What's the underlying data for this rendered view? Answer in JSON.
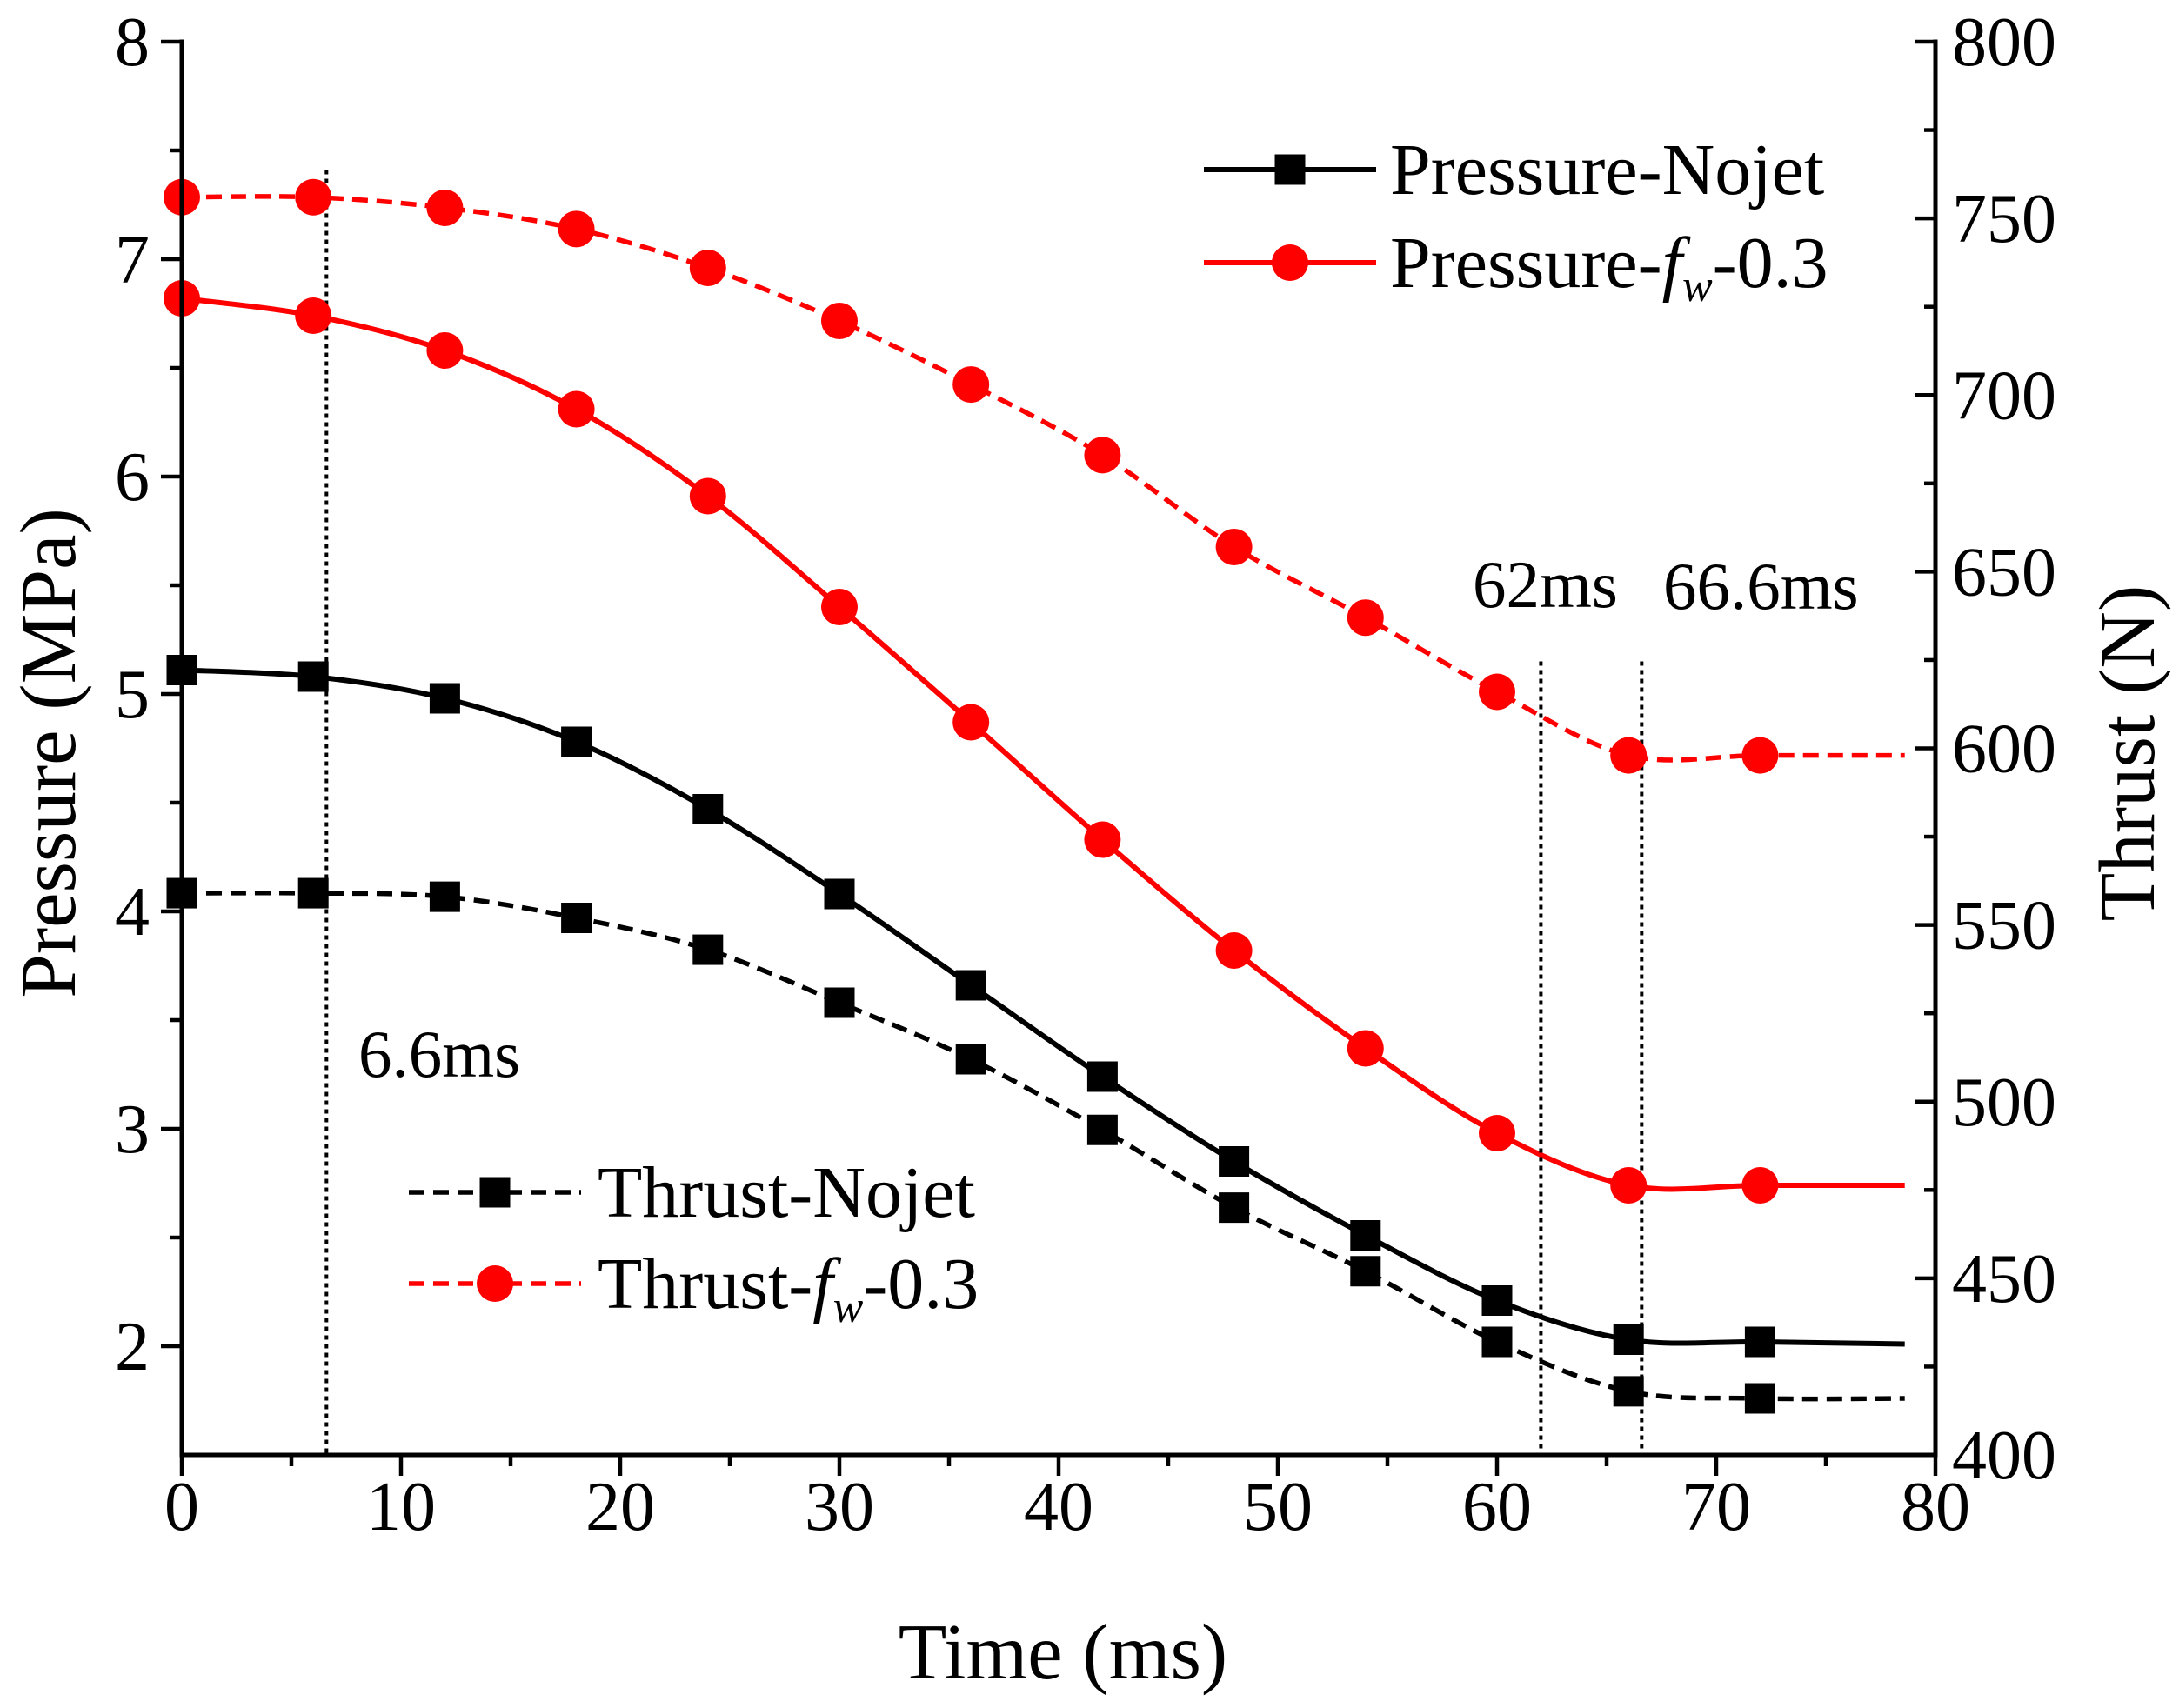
{
  "chart_data": {
    "type": "line",
    "title": "",
    "xlabel": "Time (ms)",
    "ylabel": "Pressure (MPa)",
    "y2label": "Thrust (N)",
    "xlim": [
      0,
      80
    ],
    "ylim": [
      1.5,
      8
    ],
    "y2lim": [
      400,
      800
    ],
    "xticks": [
      0,
      10,
      20,
      30,
      40,
      50,
      60,
      70,
      80
    ],
    "yticks": [
      2,
      3,
      4,
      5,
      6,
      7,
      8
    ],
    "y2ticks": [
      400,
      450,
      500,
      550,
      600,
      650,
      700,
      750,
      800
    ],
    "grid": false,
    "x": [
      0,
      6,
      12,
      18,
      24,
      30,
      36,
      42,
      48,
      54,
      60,
      66,
      72
    ],
    "series": [
      {
        "name_parts": [
          "Pressure-Nojet"
        ],
        "y2": false,
        "color": "#000000",
        "dashed": false,
        "marker": "square",
        "values": [
          5.11,
          5.08,
          4.98,
          4.78,
          4.47,
          4.08,
          3.66,
          3.24,
          2.85,
          2.51,
          2.21,
          2.03,
          2.02
        ],
        "line_end": [
          78.6,
          2.01
        ]
      },
      {
        "name_parts": [
          "Pressure-",
          "f",
          "w",
          "-0.3"
        ],
        "y2": false,
        "color": "#ff0000",
        "dashed": false,
        "marker": "circle",
        "values": [
          6.82,
          6.74,
          6.58,
          6.31,
          5.91,
          5.4,
          4.87,
          4.33,
          3.82,
          3.37,
          2.98,
          2.74,
          2.74
        ],
        "line_end": [
          78.6,
          2.74
        ]
      },
      {
        "name_parts": [
          "Thrust-Nojet"
        ],
        "y2": true,
        "color": "#000000",
        "dashed": true,
        "marker": "square",
        "values": [
          559,
          559,
          558,
          552,
          543,
          528,
          512,
          492,
          470,
          452,
          432,
          418,
          416
        ],
        "line_end": [
          78.6,
          416
        ]
      },
      {
        "name_parts": [
          "Thrust-",
          "f",
          "w",
          "-0.3"
        ],
        "y2": true,
        "color": "#ff0000",
        "dashed": true,
        "marker": "circle",
        "values": [
          756,
          756,
          753,
          747,
          736,
          721,
          703,
          683,
          657,
          637,
          616,
          598,
          598
        ],
        "line_end": [
          78.6,
          598
        ]
      }
    ],
    "legends": [
      {
        "placement": "top-right",
        "series": [
          0,
          1
        ]
      },
      {
        "placement": "bottom-left",
        "series": [
          2,
          3
        ]
      }
    ],
    "vlines": [
      {
        "x": 6.6,
        "y_range": [
          1.5,
          7.41
        ],
        "label": "6.6ms"
      },
      {
        "x": 62,
        "y_range": [
          1.5,
          5.15
        ],
        "label": "62ms"
      },
      {
        "x": 66.6,
        "y_range": [
          1.5,
          5.15
        ],
        "label": "66.6ms"
      }
    ]
  }
}
